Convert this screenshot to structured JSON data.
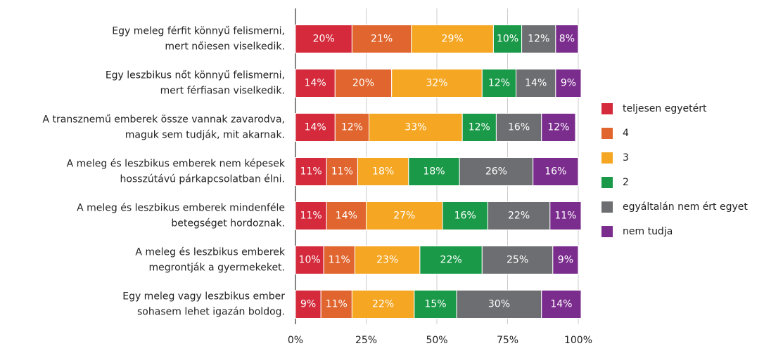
{
  "chart_data": {
    "type": "stacked-bar-horizontal",
    "categories": [
      "Egy meleg férfit könnyű felismerni,\nmert nőiesen viselkedik.",
      "Egy leszbikus nőt könnyű felismerni,\nmert férfiasan viselkedik.",
      "A transznemű emberek össze vannak zavarodva,\nmaguk sem tudják, mit akarnak.",
      "A meleg és leszbikus emberek nem képesek\nhosszútávú párkapcsolatban élni.",
      "A meleg és leszbikus emberek mindenféle\nbetegséget hordoznak.",
      "A meleg és leszbikus emberek\nmegrontják a gyermekeket.",
      "Egy meleg vagy leszbikus ember\nsohasem lehet igazán boldog."
    ],
    "series": [
      {
        "name": "teljesen egyetért",
        "color": "#d42a3b",
        "values": [
          20,
          14,
          14,
          11,
          11,
          10,
          9
        ],
        "value_labels": [
          "20%",
          "14%",
          "14%",
          "11%",
          "11%",
          "10%",
          "9%"
        ]
      },
      {
        "name": "4",
        "color": "#e0652e",
        "values": [
          21,
          20,
          12,
          11,
          14,
          11,
          11
        ],
        "value_labels": [
          "21%",
          "20%",
          "12%",
          "11%",
          "14%",
          "11%",
          "11%"
        ]
      },
      {
        "name": "3",
        "color": "#f5a623",
        "values": [
          29,
          32,
          33,
          18,
          27,
          23,
          22
        ],
        "value_labels": [
          "29%",
          "32%",
          "33%",
          "18%",
          "27%",
          "23%",
          "22%"
        ]
      },
      {
        "name": "2",
        "color": "#1a9a48",
        "values": [
          10,
          12,
          12,
          18,
          16,
          22,
          15
        ],
        "value_labels": [
          "10%",
          "12%",
          "12%",
          "18%",
          "16%",
          "22%",
          "15%"
        ]
      },
      {
        "name": "egyáltalán nem ért egyet",
        "color": "#6d6e71",
        "values": [
          12,
          14,
          16,
          26,
          22,
          25,
          30
        ],
        "value_labels": [
          "12%",
          "14%",
          "16%",
          "26%",
          "22%",
          "25%",
          "30%"
        ]
      },
      {
        "name": "nem tudja",
        "color": "#7b2d8e",
        "values": [
          8,
          9,
          12,
          16,
          11,
          9,
          14
        ],
        "value_labels": [
          "8%",
          "9%",
          "12%",
          "16%",
          "11%",
          "9%",
          "14%"
        ]
      }
    ],
    "xlim": [
      0,
      100
    ],
    "xticks": [
      {
        "value": 0,
        "label": "0%"
      },
      {
        "value": 25,
        "label": "25%"
      },
      {
        "value": 50,
        "label": "50%"
      },
      {
        "value": 75,
        "label": "75%"
      },
      {
        "value": 100,
        "label": "100%"
      }
    ],
    "grid": true,
    "legend": "right"
  }
}
